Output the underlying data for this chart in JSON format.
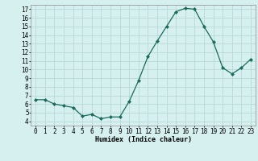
{
  "x": [
    0,
    1,
    2,
    3,
    4,
    5,
    6,
    7,
    8,
    9,
    10,
    11,
    12,
    13,
    14,
    15,
    16,
    17,
    18,
    19,
    20,
    21,
    22,
    23
  ],
  "y": [
    6.5,
    6.5,
    6.0,
    5.8,
    5.6,
    4.6,
    4.8,
    4.3,
    4.5,
    4.5,
    6.3,
    8.7,
    11.5,
    13.3,
    15.0,
    16.7,
    17.1,
    17.0,
    15.0,
    13.2,
    10.2,
    9.5,
    10.2,
    11.2
  ],
  "line_color": "#1a6b5a",
  "marker": "D",
  "marker_size": 2.0,
  "bg_color": "#d6f0f0",
  "grid_color": "#b8d8d8",
  "xlabel": "Humidex (Indice chaleur)",
  "xlim": [
    -0.5,
    23.5
  ],
  "ylim": [
    3.5,
    17.5
  ],
  "yticks": [
    4,
    5,
    6,
    7,
    8,
    9,
    10,
    11,
    12,
    13,
    14,
    15,
    16,
    17
  ],
  "xticks": [
    0,
    1,
    2,
    3,
    4,
    5,
    6,
    7,
    8,
    9,
    10,
    11,
    12,
    13,
    14,
    15,
    16,
    17,
    18,
    19,
    20,
    21,
    22,
    23
  ],
  "xtick_labels": [
    "0",
    "1",
    "2",
    "3",
    "4",
    "5",
    "6",
    "7",
    "8",
    "9",
    "10",
    "11",
    "12",
    "13",
    "14",
    "15",
    "16",
    "17",
    "18",
    "19",
    "20",
    "21",
    "22",
    "23"
  ],
  "label_fontsize": 6.0,
  "tick_fontsize": 5.5
}
